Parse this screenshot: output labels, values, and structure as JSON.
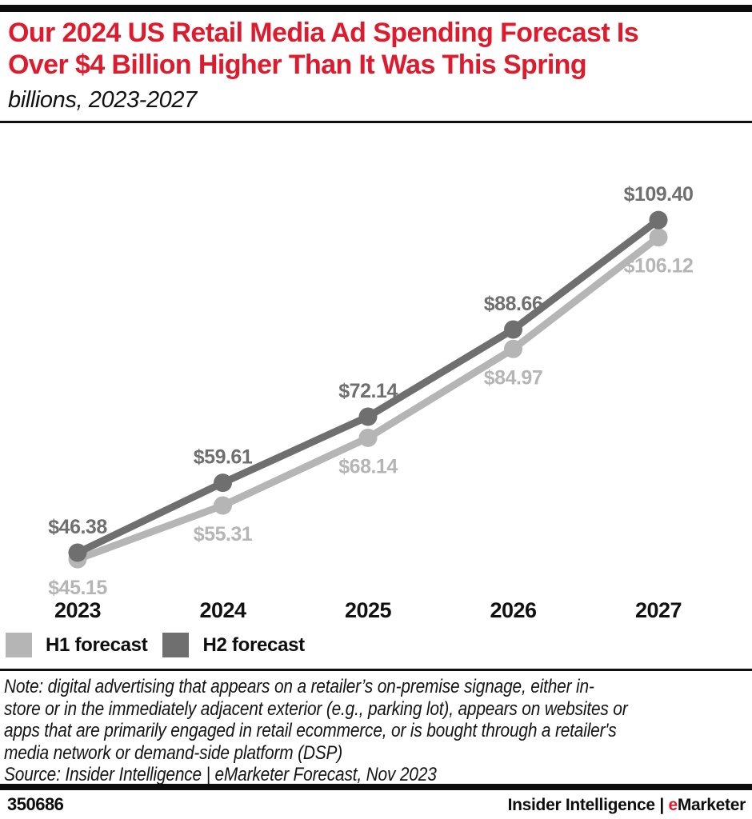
{
  "header": {
    "title_lines": [
      "Our 2024 US Retail Media Ad Spending Forecast Is",
      "Over $4 Billion Higher Than It Was This Spring"
    ],
    "subtitle": "billions, 2023-2027",
    "title_color": "#de1b2d"
  },
  "chart_data": {
    "type": "line",
    "title": "Our 2024 US Retail Media Ad Spending Forecast Is Over $4 Billion Higher Than It Was This Spring",
    "subtitle": "billions, 2023-2027",
    "unit": "US$ billions",
    "categories": [
      "2023",
      "2024",
      "2025",
      "2026",
      "2027"
    ],
    "series": [
      {
        "name": "H1 forecast",
        "color": "#b5b5b5",
        "values": [
          45.15,
          55.31,
          68.14,
          84.97,
          106.12
        ],
        "label_position": "below"
      },
      {
        "name": "H2 forecast",
        "color": "#6f6f6f",
        "values": [
          46.38,
          59.61,
          72.14,
          88.66,
          109.4
        ],
        "label_position": "above"
      }
    ],
    "value_prefix": "$",
    "ylim": [
      40,
      115
    ],
    "grid": false,
    "axes_shown": false,
    "legend_position": "bottom-left"
  },
  "notes": {
    "note_lines": [
      "Note: digital advertising that appears on a retailer’s on-premise signage, either in-",
      "store or in the immediately adjacent exterior (e.g., parking lot), appears on websites or",
      "apps that are primarily engaged in retail ecommerce, or is bought through a retailer's",
      "media network or demand-side platform (DSP)"
    ],
    "source": "Source: Insider Intelligence | eMarketer Forecast, Nov 2023"
  },
  "footer": {
    "chart_id": "350686",
    "brand_prefix": "Insider Intelligence | ",
    "brand_e": "e",
    "brand_rest": "Marketer",
    "brand_e_color": "#de1b2d"
  }
}
